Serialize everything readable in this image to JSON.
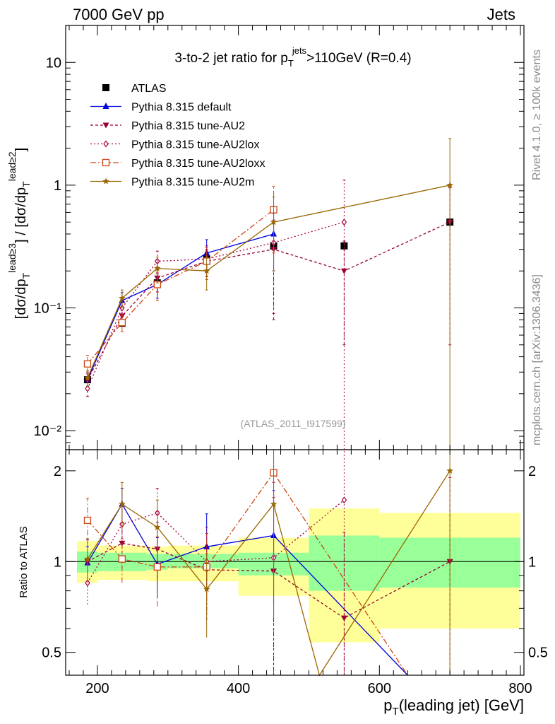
{
  "header": {
    "left": "7000 GeV pp",
    "right": "Jets"
  },
  "side_labels": {
    "top": "Rivet 4.1.0, ≥ 100k events",
    "bottom": "mcplots.cern.ch [arXiv:1306.3436]"
  },
  "watermark": "(ATLAS_2011_I917599)",
  "chart_data": [
    {
      "type": "line",
      "panel": "main",
      "title": "3-to-2 jet ratio for p_T^jets >110GeV (R=0.4)",
      "title_parts": {
        "a": "3-to-2 jet ratio for p",
        "sub": "T",
        "sup": "jets",
        "b": ">110GeV (R=0.4)"
      },
      "ylabel": "[dσ/dp_T^lead≥3] / [dσ/dp_T^lead≥2]",
      "ylabel_parts": {
        "a": "[dσ/dp",
        "sub": "T",
        "sup": "lead≥3",
        "b": "] / [dσ/dp",
        "sub2": "T",
        "sup2": "lead≥2",
        "c": "]"
      },
      "yscale": "log",
      "ylim": [
        0.007,
        20
      ],
      "xlim": [
        155,
        805
      ],
      "y_ticks": [
        {
          "v": 10,
          "label": "10"
        },
        {
          "v": 1,
          "label": "1"
        },
        {
          "v": 0.1,
          "label": "10⁻¹"
        },
        {
          "v": 0.01,
          "label": "10⁻²"
        }
      ],
      "legend_position": "top-left",
      "series": [
        {
          "name": "ATLAS",
          "color": "#000000",
          "marker": "square-filled",
          "dash": "none",
          "x": [
            186,
            235,
            285,
            355,
            450,
            550,
            700
          ],
          "xerr": [
            [
              171,
              200
            ],
            [
              220,
              250
            ],
            [
              270,
              300
            ],
            [
              310,
              400
            ],
            [
              400,
              500
            ],
            [
              500,
              600
            ],
            [
              600,
              800
            ]
          ],
          "y": [
            0.026,
            0.075,
            0.16,
            0.25,
            0.32,
            0.32,
            0.5
          ],
          "err": [
            0.001,
            0.002,
            0.005,
            0.01,
            0.02,
            0.03,
            0.05
          ]
        },
        {
          "name": "Pythia 8.315 default",
          "color": "#0000dd",
          "marker": "triangle-up",
          "dash": "solid",
          "x": [
            186,
            235,
            285,
            355,
            450
          ],
          "y": [
            0.026,
            0.115,
            0.155,
            0.28,
            0.4
          ],
          "err": [
            0.003,
            0.018,
            0.035,
            0.08,
            0.2
          ]
        },
        {
          "name": "Pythia 8.315 tune-AU2",
          "color": "#990033",
          "marker": "triangle-down",
          "dash": "4,3",
          "x": [
            186,
            235,
            285,
            355,
            450,
            550,
            700
          ],
          "y": [
            0.026,
            0.086,
            0.175,
            0.24,
            0.3,
            0.2,
            0.5
          ],
          "err": [
            0.004,
            0.013,
            0.04,
            0.06,
            0.22,
            0.15,
            0.45
          ]
        },
        {
          "name": "Pythia 8.315 tune-AU2lox",
          "color": "#aa0044",
          "marker": "diamond-open",
          "dash": "2,3",
          "x": [
            186,
            235,
            285,
            355,
            450,
            550
          ],
          "y": [
            0.022,
            0.1,
            0.24,
            0.25,
            0.34,
            0.5
          ],
          "err": [
            0.003,
            0.015,
            0.05,
            0.07,
            0.25,
            0.6
          ]
        },
        {
          "name": "Pythia 8.315 tune-AU2loxx",
          "color": "#cc4411",
          "marker": "square-open",
          "dash": "8,3,2,3",
          "x": [
            186,
            235,
            285,
            355,
            450
          ],
          "y": [
            0.035,
            0.076,
            0.155,
            0.24,
            0.63
          ],
          "err": [
            0.006,
            0.012,
            0.04,
            0.07,
            0.35
          ]
        },
        {
          "name": "Pythia 8.315 tune-AU2m",
          "color": "#996600",
          "marker": "star",
          "dash": "solid",
          "x": [
            186,
            235,
            285,
            355,
            450,
            700
          ],
          "y": [
            0.027,
            0.12,
            0.21,
            0.2,
            0.5,
            1.0
          ],
          "err": [
            0.004,
            0.02,
            0.05,
            0.06,
            0.3,
            1.4
          ]
        }
      ]
    },
    {
      "type": "line",
      "panel": "ratio",
      "ylabel": "Ratio to ATLAS",
      "xlabel": "p_T(leading jet) [GeV]",
      "xlabel_parts": {
        "a": "p",
        "sub": "T",
        "b": "(leading jet) [GeV]"
      },
      "yscale": "log",
      "ylim": [
        0.42,
        2.35
      ],
      "xlim": [
        155,
        805
      ],
      "x_ticks": [
        200,
        400,
        600,
        800
      ],
      "y_ticks": [
        0.5,
        1,
        2
      ],
      "reference_line": 1,
      "bands": [
        {
          "x": [
            171,
            200
          ],
          "inner": [
            0.92,
            1.08
          ],
          "outer": [
            0.85,
            1.17
          ]
        },
        {
          "x": [
            200,
            270
          ],
          "inner": [
            0.93,
            1.07
          ],
          "outer": [
            0.87,
            1.13
          ]
        },
        {
          "x": [
            270,
            300
          ],
          "inner": [
            0.94,
            1.06
          ],
          "outer": [
            0.86,
            1.12
          ]
        },
        {
          "x": [
            300,
            400
          ],
          "inner": [
            0.95,
            1.06
          ],
          "outer": [
            0.86,
            1.13
          ]
        },
        {
          "x": [
            400,
            500
          ],
          "inner": [
            0.9,
            1.07
          ],
          "outer": [
            0.77,
            1.2
          ]
        },
        {
          "x": [
            500,
            600
          ],
          "inner": [
            0.8,
            1.22
          ],
          "outer": [
            0.54,
            1.5
          ]
        },
        {
          "x": [
            600,
            800
          ],
          "inner": [
            0.82,
            1.2
          ],
          "outer": [
            0.6,
            1.45
          ]
        }
      ],
      "series": [
        {
          "name": "Pythia 8.315 default",
          "x": [
            186,
            235,
            285,
            355,
            450,
            640
          ],
          "y": [
            0.99,
            1.55,
            0.98,
            1.12,
            1.22,
            0.42
          ],
          "err": [
            0.13,
            0.2,
            0.22,
            0.32,
            0.5,
            0
          ]
        },
        {
          "name": "Pythia 8.315 tune-AU2",
          "x": [
            186,
            235,
            285,
            355,
            450,
            550,
            700
          ],
          "y": [
            1.0,
            1.15,
            1.1,
            0.94,
            0.93,
            0.65,
            1.0
          ],
          "err": [
            0.18,
            0.2,
            0.25,
            0.3,
            0.7,
            0.6,
            0.9
          ]
        },
        {
          "name": "Pythia 8.315 tune-AU2lox",
          "x": [
            186,
            235,
            285,
            355,
            450,
            550
          ],
          "y": [
            0.85,
            1.33,
            1.45,
            1.0,
            1.03,
            1.6
          ],
          "err": [
            0.13,
            0.2,
            0.3,
            0.3,
            0.8,
            1.5
          ]
        },
        {
          "name": "Pythia 8.315 tune-AU2loxx",
          "x": [
            186,
            235,
            285,
            355,
            450,
            640
          ],
          "y": [
            1.37,
            1.02,
            0.96,
            0.96,
            1.97,
            0.42
          ],
          "err": [
            0.25,
            0.17,
            0.25,
            0.28,
            1.0,
            0
          ]
        },
        {
          "name": "Pythia 8.315 tune-AU2m",
          "x": [
            186,
            235,
            285,
            355,
            450,
            515,
            700
          ],
          "y": [
            1.02,
            1.55,
            1.3,
            0.81,
            1.55,
            0.42,
            2.0
          ],
          "err": [
            0.17,
            0.28,
            0.3,
            0.25,
            0.9,
            0,
            2.5
          ]
        }
      ]
    }
  ]
}
